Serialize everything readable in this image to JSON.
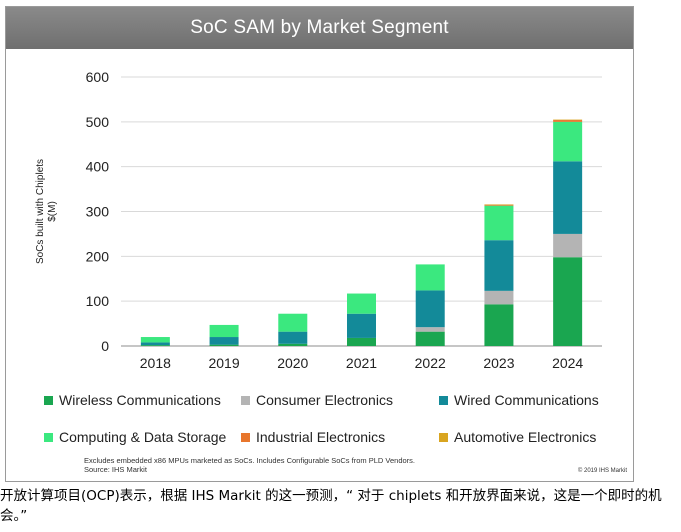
{
  "chart_data": {
    "type": "bar",
    "stacked": true,
    "title": "SoC SAM by Market Segment",
    "ylabel": "SoCs built with Chiplets $(M)",
    "ylabel_lines": [
      "SoCs built with Chiplets",
      "$(M)"
    ],
    "xlabel": "",
    "ylim": [
      0,
      600
    ],
    "yticks": [
      0,
      100,
      200,
      300,
      400,
      500,
      600
    ],
    "grid": true,
    "legend_position": "bottom",
    "categories": [
      "2018",
      "2019",
      "2020",
      "2021",
      "2022",
      "2023",
      "2024"
    ],
    "series": [
      {
        "name": "Wireless Communications",
        "color": "#1aa650",
        "values": [
          2,
          3,
          5,
          18,
          32,
          93,
          198
        ]
      },
      {
        "name": "Consumer Electronics",
        "color": "#b4b4b4",
        "values": [
          0,
          0,
          0,
          0,
          10,
          30,
          52
        ]
      },
      {
        "name": "Wired Communications",
        "color": "#138a99",
        "values": [
          6,
          17,
          27,
          54,
          82,
          113,
          162
        ]
      },
      {
        "name": "Computing & Data Storage",
        "color": "#3be87f",
        "values": [
          12,
          27,
          40,
          45,
          58,
          77,
          88
        ]
      },
      {
        "name": "Industrial Electronics",
        "color": "#e8762c",
        "values": [
          0,
          0,
          0,
          0,
          0,
          2,
          4
        ]
      },
      {
        "name": "Automotive Electronics",
        "color": "#d9a520",
        "values": [
          0,
          0,
          0,
          0,
          0,
          1,
          1
        ]
      }
    ]
  },
  "notes": {
    "line1": "Excludes embedded x86 MPUs marketed as SoCs. Includes Configurable SoCs from PLD Vendors.",
    "line2": "Source: IHS Markit",
    "copyright": "© 2019 IHS Markit"
  },
  "caption": "开放计算项目(OCP)表示，根据 IHS Markit 的这一预测，“ 对于 chiplets 和开放界面来说，这是一个即时的机会。”"
}
